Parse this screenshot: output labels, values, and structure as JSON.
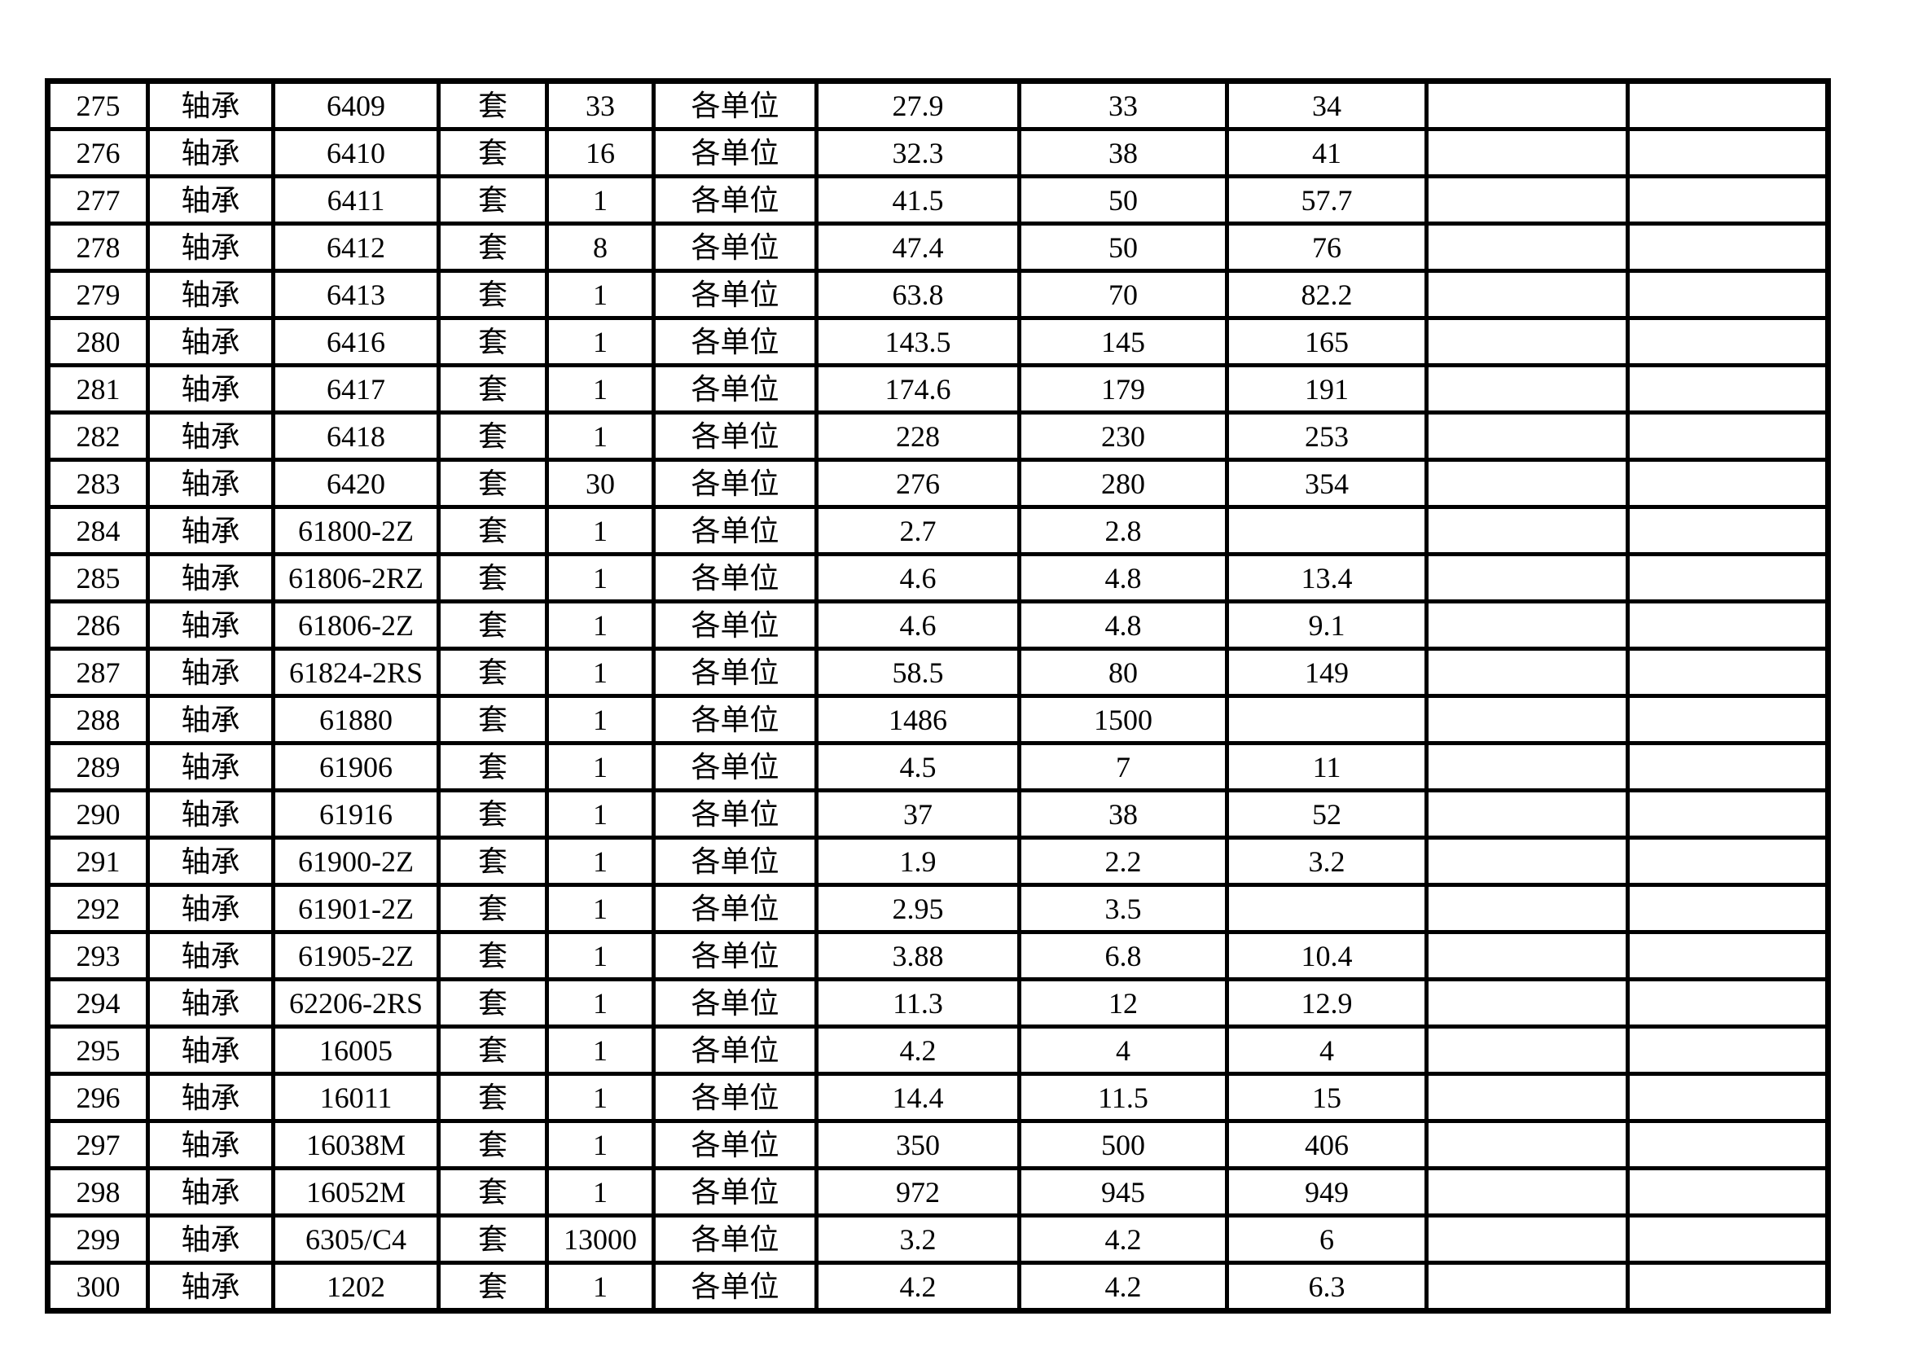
{
  "colors": {
    "background": "#ffffff",
    "grid_border": "#000000",
    "text": "#000000"
  },
  "table": {
    "columns": [
      "row_no",
      "item_name",
      "model",
      "unit",
      "quantity",
      "user_scope",
      "price_1",
      "price_2",
      "price_3",
      "blank_1",
      "blank_2"
    ],
    "rows": [
      [
        "275",
        "轴承",
        "6409",
        "套",
        "33",
        "各单位",
        "27.9",
        "33",
        "34",
        "",
        ""
      ],
      [
        "276",
        "轴承",
        "6410",
        "套",
        "16",
        "各单位",
        "32.3",
        "38",
        "41",
        "",
        ""
      ],
      [
        "277",
        "轴承",
        "6411",
        "套",
        "1",
        "各单位",
        "41.5",
        "50",
        "57.7",
        "",
        ""
      ],
      [
        "278",
        "轴承",
        "6412",
        "套",
        "8",
        "各单位",
        "47.4",
        "50",
        "76",
        "",
        ""
      ],
      [
        "279",
        "轴承",
        "6413",
        "套",
        "1",
        "各单位",
        "63.8",
        "70",
        "82.2",
        "",
        ""
      ],
      [
        "280",
        "轴承",
        "6416",
        "套",
        "1",
        "各单位",
        "143.5",
        "145",
        "165",
        "",
        ""
      ],
      [
        "281",
        "轴承",
        "6417",
        "套",
        "1",
        "各单位",
        "174.6",
        "179",
        "191",
        "",
        ""
      ],
      [
        "282",
        "轴承",
        "6418",
        "套",
        "1",
        "各单位",
        "228",
        "230",
        "253",
        "",
        ""
      ],
      [
        "283",
        "轴承",
        "6420",
        "套",
        "30",
        "各单位",
        "276",
        "280",
        "354",
        "",
        ""
      ],
      [
        "284",
        "轴承",
        "61800-2Z",
        "套",
        "1",
        "各单位",
        "2.7",
        "2.8",
        "",
        "",
        ""
      ],
      [
        "285",
        "轴承",
        "61806-2RZ",
        "套",
        "1",
        "各单位",
        "4.6",
        "4.8",
        "13.4",
        "",
        ""
      ],
      [
        "286",
        "轴承",
        "61806-2Z",
        "套",
        "1",
        "各单位",
        "4.6",
        "4.8",
        "9.1",
        "",
        ""
      ],
      [
        "287",
        "轴承",
        "61824-2RS",
        "套",
        "1",
        "各单位",
        "58.5",
        "80",
        "149",
        "",
        ""
      ],
      [
        "288",
        "轴承",
        "61880",
        "套",
        "1",
        "各单位",
        "1486",
        "1500",
        "",
        "",
        ""
      ],
      [
        "289",
        "轴承",
        "61906",
        "套",
        "1",
        "各单位",
        "4.5",
        "7",
        "11",
        "",
        ""
      ],
      [
        "290",
        "轴承",
        "61916",
        "套",
        "1",
        "各单位",
        "37",
        "38",
        "52",
        "",
        ""
      ],
      [
        "291",
        "轴承",
        "61900-2Z",
        "套",
        "1",
        "各单位",
        "1.9",
        "2.2",
        "3.2",
        "",
        ""
      ],
      [
        "292",
        "轴承",
        "61901-2Z",
        "套",
        "1",
        "各单位",
        "2.95",
        "3.5",
        "",
        "",
        ""
      ],
      [
        "293",
        "轴承",
        "61905-2Z",
        "套",
        "1",
        "各单位",
        "3.88",
        "6.8",
        "10.4",
        "",
        ""
      ],
      [
        "294",
        "轴承",
        "62206-2RS",
        "套",
        "1",
        "各单位",
        "11.3",
        "12",
        "12.9",
        "",
        ""
      ],
      [
        "295",
        "轴承",
        "16005",
        "套",
        "1",
        "各单位",
        "4.2",
        "4",
        "4",
        "",
        ""
      ],
      [
        "296",
        "轴承",
        "16011",
        "套",
        "1",
        "各单位",
        "14.4",
        "11.5",
        "15",
        "",
        ""
      ],
      [
        "297",
        "轴承",
        "16038M",
        "套",
        "1",
        "各单位",
        "350",
        "500",
        "406",
        "",
        ""
      ],
      [
        "298",
        "轴承",
        "16052M",
        "套",
        "1",
        "各单位",
        "972",
        "945",
        "949",
        "",
        ""
      ],
      [
        "299",
        "轴承",
        "6305/C4",
        "套",
        "13000",
        "各单位",
        "3.2",
        "4.2",
        "6",
        "",
        ""
      ],
      [
        "300",
        "轴承",
        "1202",
        "套",
        "1",
        "各单位",
        "4.2",
        "4.2",
        "6.3",
        "",
        ""
      ]
    ]
  }
}
